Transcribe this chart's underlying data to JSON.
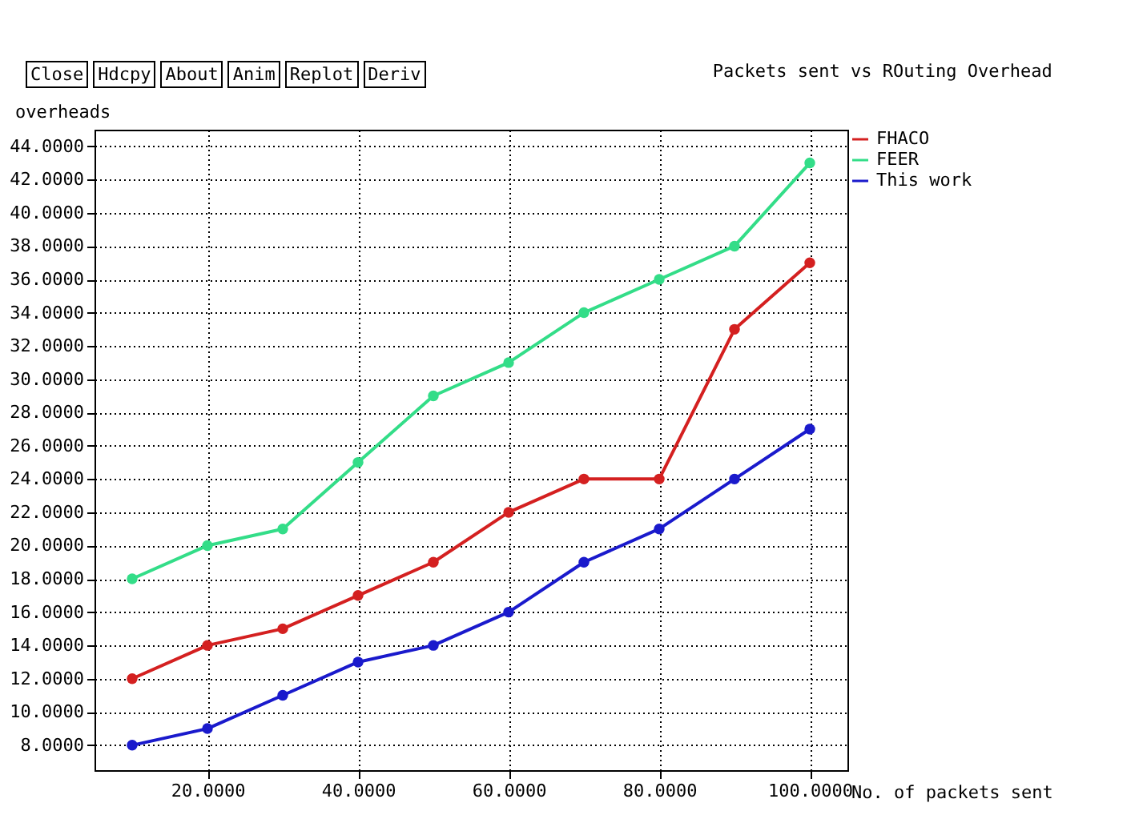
{
  "chart_data": {
    "type": "line",
    "title": "Packets sent vs ROuting Overhead",
    "xlabel": "No. of packets sent",
    "ylabel": "overheads",
    "annotations": [
      "Close",
      "Hdcpy",
      "About",
      "Anim",
      "Replot",
      "Deriv"
    ],
    "x": [
      10,
      20,
      30,
      40,
      50,
      60,
      70,
      80,
      90,
      100
    ],
    "series": [
      {
        "name": "FHACO",
        "color": "#d42020",
        "values": [
          12,
          14,
          15,
          17,
          19,
          22,
          24,
          24,
          33,
          37
        ]
      },
      {
        "name": "FEER",
        "color": "#33dd88",
        "values": [
          18,
          20,
          21,
          25,
          29,
          31,
          34,
          36,
          38,
          43
        ]
      },
      {
        "name": "This work",
        "color": "#1a1acc",
        "values": [
          8,
          9,
          11,
          13,
          14,
          16,
          19,
          21,
          24,
          27
        ]
      }
    ],
    "xlim": [
      5,
      105
    ],
    "ylim": [
      6.5,
      45
    ],
    "xticks": [
      {
        "value": 20,
        "label": "20.0000"
      },
      {
        "value": 40,
        "label": "40.0000"
      },
      {
        "value": 60,
        "label": "60.0000"
      },
      {
        "value": 80,
        "label": "80.0000"
      },
      {
        "value": 100,
        "label": "100.0000"
      }
    ],
    "yticks": [
      {
        "value": 8,
        "label": "8.0000"
      },
      {
        "value": 10,
        "label": "10.0000"
      },
      {
        "value": 12,
        "label": "12.0000"
      },
      {
        "value": 14,
        "label": "14.0000"
      },
      {
        "value": 16,
        "label": "16.0000"
      },
      {
        "value": 18,
        "label": "18.0000"
      },
      {
        "value": 20,
        "label": "20.0000"
      },
      {
        "value": 22,
        "label": "22.0000"
      },
      {
        "value": 24,
        "label": "24.0000"
      },
      {
        "value": 26,
        "label": "26.0000"
      },
      {
        "value": 28,
        "label": "28.0000"
      },
      {
        "value": 30,
        "label": "30.0000"
      },
      {
        "value": 32,
        "label": "32.0000"
      },
      {
        "value": 34,
        "label": "34.0000"
      },
      {
        "value": 36,
        "label": "36.0000"
      },
      {
        "value": 38,
        "label": "38.0000"
      },
      {
        "value": 40,
        "label": "40.0000"
      },
      {
        "value": 42,
        "label": "42.0000"
      },
      {
        "value": 44,
        "label": "44.0000"
      }
    ],
    "grid": true,
    "legend": "top right",
    "marker": "circle",
    "line_style": "solid"
  }
}
